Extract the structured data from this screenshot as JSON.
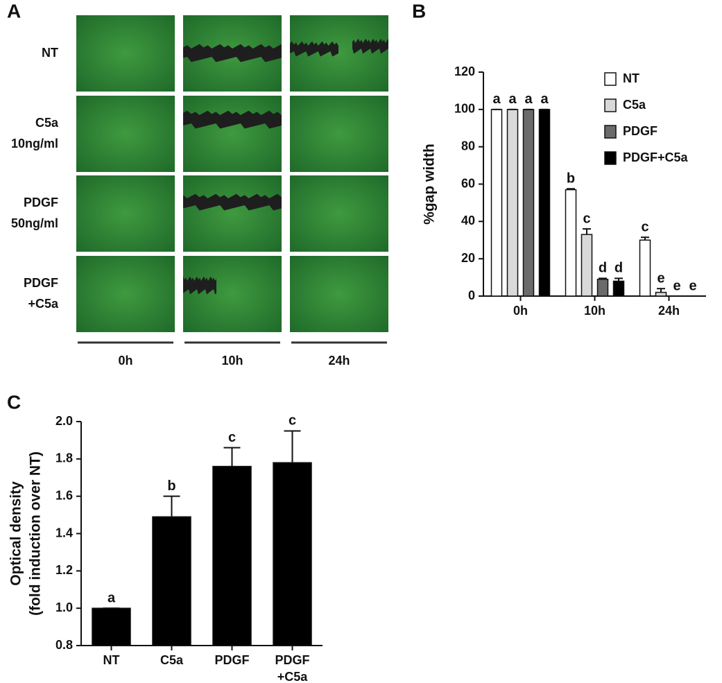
{
  "panel_labels": [
    "A",
    "B",
    "C"
  ],
  "panel_a": {
    "rows": [
      [
        "NT"
      ],
      [
        "C5a",
        "10ng/ml"
      ],
      [
        "PDGF",
        "50ng/ml"
      ],
      [
        "PDGF",
        "+C5a"
      ]
    ],
    "columns": [
      "0h",
      "10h",
      "24h"
    ]
  },
  "chart_data": [
    {
      "type": "bar",
      "ylabel": "%gap width",
      "categories": [
        "0h",
        "10h",
        "24h"
      ],
      "series": [
        {
          "name": "NT",
          "color": "#ffffff",
          "values": [
            100,
            57,
            30
          ],
          "errors": [
            0,
            0.5,
            1.5
          ],
          "annotations": [
            "a",
            "b",
            "c"
          ]
        },
        {
          "name": "C5a",
          "color": "#d9d9d9",
          "values": [
            100,
            33,
            2
          ],
          "errors": [
            0,
            3,
            2
          ],
          "annotations": [
            "a",
            "c",
            "e"
          ]
        },
        {
          "name": "PDGF",
          "color": "#6b6b6b",
          "values": [
            100,
            9,
            0
          ],
          "errors": [
            0,
            0.5,
            0
          ],
          "annotations": [
            "a",
            "d",
            "e"
          ]
        },
        {
          "name": "PDGF+C5a",
          "color": "#000000",
          "values": [
            100,
            8,
            0
          ],
          "errors": [
            0,
            1.5,
            0
          ],
          "annotations": [
            "a",
            "d",
            "e"
          ]
        }
      ],
      "ylim": [
        0,
        120
      ],
      "yticks": [
        0,
        20,
        40,
        60,
        80,
        100,
        120
      ],
      "legend": "upper right"
    },
    {
      "type": "bar",
      "ylabel": [
        "Optical density",
        "(fold induction over NT)"
      ],
      "categories": [
        [
          "NT"
        ],
        [
          "C5a"
        ],
        [
          "PDGF"
        ],
        [
          "PDGF",
          "+C5a"
        ]
      ],
      "values": [
        1.0,
        1.49,
        1.76,
        1.78
      ],
      "errors": [
        0,
        0.11,
        0.1,
        0.17
      ],
      "annotations": [
        "a",
        "b",
        "c",
        "c"
      ],
      "color": "#000000",
      "ylim": [
        0.8,
        2.0
      ],
      "yticks": [
        {
          "value": 0.8,
          "label": "0.8"
        },
        {
          "value": 1,
          "label": "1.0"
        },
        {
          "value": 1.2,
          "label": "1.2"
        },
        {
          "value": 1.4,
          "label": "1.4"
        },
        {
          "value": 1.6,
          "label": "1.6"
        },
        {
          "value": 1.8,
          "label": "1.8"
        },
        {
          "value": 2,
          "label": "2.0"
        }
      ]
    }
  ]
}
